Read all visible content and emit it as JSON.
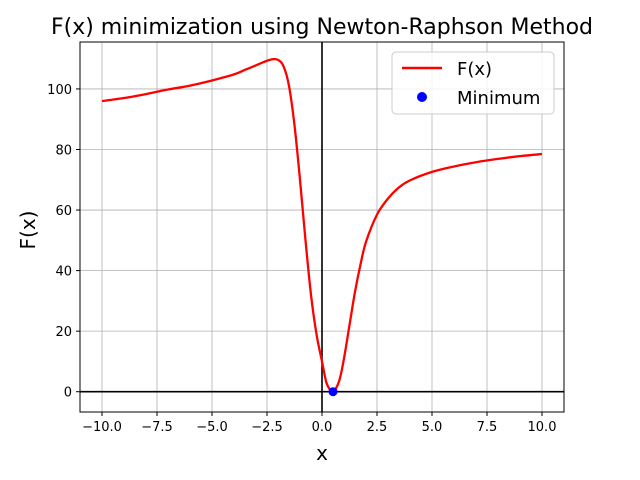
{
  "chart_data": {
    "type": "line",
    "title": "F(x) minimization using Newton-Raphson Method",
    "xlabel": "x",
    "ylabel": "F(x)",
    "xlim": [
      -11.0,
      11.0
    ],
    "ylim": [
      -6.7,
      115.5
    ],
    "xticks": [
      -10.0,
      -7.5,
      -5.0,
      -2.5,
      0.0,
      2.5,
      5.0,
      7.5,
      10.0
    ],
    "xtick_labels": [
      "−10.0",
      "−7.5",
      "−5.0",
      "−2.5",
      "0.0",
      "2.5",
      "5.0",
      "7.5",
      "10.0"
    ],
    "yticks": [
      0,
      20,
      40,
      60,
      80,
      100
    ],
    "ytick_labels": [
      "0",
      "20",
      "40",
      "60",
      "80",
      "100"
    ],
    "grid": true,
    "legend_position": "top-right",
    "series": [
      {
        "name": "F(x)",
        "style": "line",
        "color": "#ff0000",
        "x": [
          -10,
          -9,
          -8,
          -7,
          -6,
          -5,
          -4,
          -3.5,
          -3,
          -2.75,
          -2.5,
          -2.25,
          -2,
          -1.75,
          -1.5,
          -1.25,
          -1,
          -0.75,
          -0.5,
          -0.25,
          0,
          0.2,
          0.4,
          0.5,
          0.6,
          0.8,
          1,
          1.25,
          1.5,
          1.75,
          2,
          2.5,
          3,
          3.5,
          4,
          5,
          6,
          7,
          8,
          9,
          10
        ],
        "y": [
          96,
          97,
          98.3,
          99.8,
          101.1,
          102.8,
          104.8,
          106.3,
          107.8,
          108.6,
          109.3,
          109.8,
          109.6,
          107.5,
          101,
          88,
          70,
          50,
          32,
          19,
          10,
          3,
          0.3,
          0,
          0.6,
          4,
          11,
          22,
          33,
          42,
          49.5,
          58.5,
          63.8,
          67.5,
          69.8,
          72.6,
          74.4,
          75.8,
          76.9,
          77.8,
          78.5
        ]
      },
      {
        "name": "Minimum",
        "style": "marker",
        "color": "#0000ff",
        "x": [
          0.5
        ],
        "y": [
          0
        ]
      }
    ]
  }
}
